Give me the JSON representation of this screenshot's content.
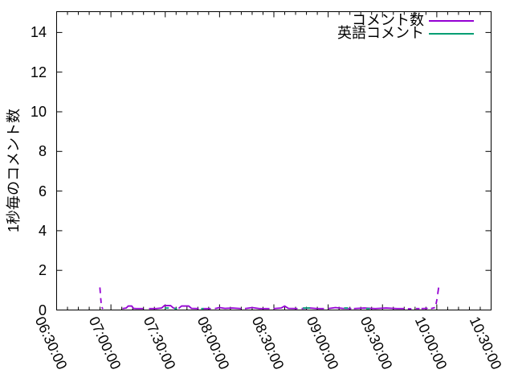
{
  "figure": {
    "background": "#ffffff",
    "border_color": "#000000",
    "tick_color": "#000000",
    "text_color": "#000000"
  },
  "chart_data": {
    "type": "line",
    "title": "",
    "xlabel": "",
    "ylabel": "1秒毎のコメント数",
    "x_tick_labels": [
      "06:30:00",
      "07:00:00",
      "07:30:00",
      "08:00:00",
      "08:30:00",
      "09:00:00",
      "09:30:00",
      "10:00:00",
      "10:30:00"
    ],
    "x_tick_minutes": [
      0,
      30,
      60,
      90,
      120,
      150,
      180,
      210,
      240
    ],
    "x_minor_step_minutes": 6,
    "y_ticks": [
      0,
      2,
      4,
      6,
      8,
      10,
      12,
      14
    ],
    "ylim": [
      0,
      15.05
    ],
    "xlim_minutes": [
      0,
      240
    ],
    "grid": false,
    "legend_position": "top-right-inside",
    "series": [
      {
        "name": "コメント数",
        "color": "#9400d3",
        "segments": [
          [
            [
              23.9,
              1.14
            ],
            [
              24.15,
              0.85
            ]
          ],
          [
            [
              24.35,
              0.6
            ],
            [
              24.6,
              0.35
            ]
          ],
          [
            [
              24.9,
              0.14
            ],
            [
              25.6,
              0.06
            ]
          ],
          [
            [
              36.4,
              0.07
            ],
            [
              38.5,
              0.1
            ],
            [
              39.5,
              0.2
            ],
            [
              41.5,
              0.2
            ],
            [
              42.5,
              0.08
            ],
            [
              44,
              0.07
            ],
            [
              47.9,
              0.07
            ]
          ],
          [
            [
              51,
              0.07
            ],
            [
              55,
              0.07
            ],
            [
              58,
              0.1
            ],
            [
              59.5,
              0.22
            ],
            [
              63,
              0.22
            ],
            [
              64.5,
              0.1
            ],
            [
              65.7,
              0.08
            ]
          ],
          [
            [
              67.4,
              0.08
            ],
            [
              69,
              0.2
            ],
            [
              73,
              0.2
            ],
            [
              74.5,
              0.08
            ],
            [
              78.5,
              0.07
            ]
          ],
          [
            [
              80.7,
              0.07
            ],
            [
              85.2,
              0.07
            ]
          ],
          [
            [
              87.4,
              0.07
            ],
            [
              90,
              0.12
            ],
            [
              93,
              0.08
            ],
            [
              97,
              0.1
            ],
            [
              102,
              0.07
            ]
          ],
          [
            [
              104,
              0.07
            ],
            [
              108,
              0.12
            ],
            [
              112,
              0.07
            ],
            [
              117.6,
              0.07
            ]
          ],
          [
            [
              119.8,
              0.07
            ],
            [
              124,
              0.1
            ],
            [
              126,
              0.2
            ],
            [
              128,
              0.08
            ],
            [
              133.1,
              0.07
            ]
          ],
          [
            [
              135.3,
              0.07
            ],
            [
              140,
              0.1
            ],
            [
              144,
              0.07
            ],
            [
              147.7,
              0.07
            ]
          ],
          [
            [
              150,
              0.07
            ],
            [
              154,
              0.12
            ],
            [
              158,
              0.08
            ],
            [
              162.8,
              0.07
            ]
          ],
          [
            [
              164.2,
              0.07
            ],
            [
              170,
              0.1
            ],
            [
              176,
              0.07
            ],
            [
              182,
              0.1
            ],
            [
              188,
              0.07
            ],
            [
              192.1,
              0.07
            ]
          ],
          [
            [
              194,
              0.06
            ],
            [
              196,
              0.06
            ]
          ],
          [
            [
              198.5,
              0.07
            ],
            [
              200.5,
              0.07
            ]
          ],
          [
            [
              201.5,
              0.07
            ],
            [
              205,
              0.08
            ]
          ],
          [
            [
              206.8,
              0.07
            ],
            [
              209,
              0.12
            ]
          ],
          [
            [
              209.6,
              0.3
            ],
            [
              210.1,
              0.55
            ]
          ],
          [
            [
              210.5,
              0.8
            ],
            [
              211,
              1.13
            ]
          ]
        ]
      },
      {
        "name": "英語コメント",
        "color": "#009e73",
        "segments": [
          [
            [
              59.8,
              0.1
            ],
            [
              62,
              0.1
            ]
          ],
          [
            [
              65,
              0.07
            ],
            [
              66.5,
              0.07
            ]
          ],
          [
            [
              79.8,
              0.07
            ],
            [
              81.2,
              0.07
            ]
          ],
          [
            [
              136,
              0.1
            ],
            [
              140,
              0.1
            ]
          ],
          [
            [
              158.8,
              0.1
            ],
            [
              161,
              0.1
            ]
          ],
          [
            [
              171,
              0.07
            ],
            [
              173,
              0.07
            ]
          ]
        ]
      }
    ]
  }
}
